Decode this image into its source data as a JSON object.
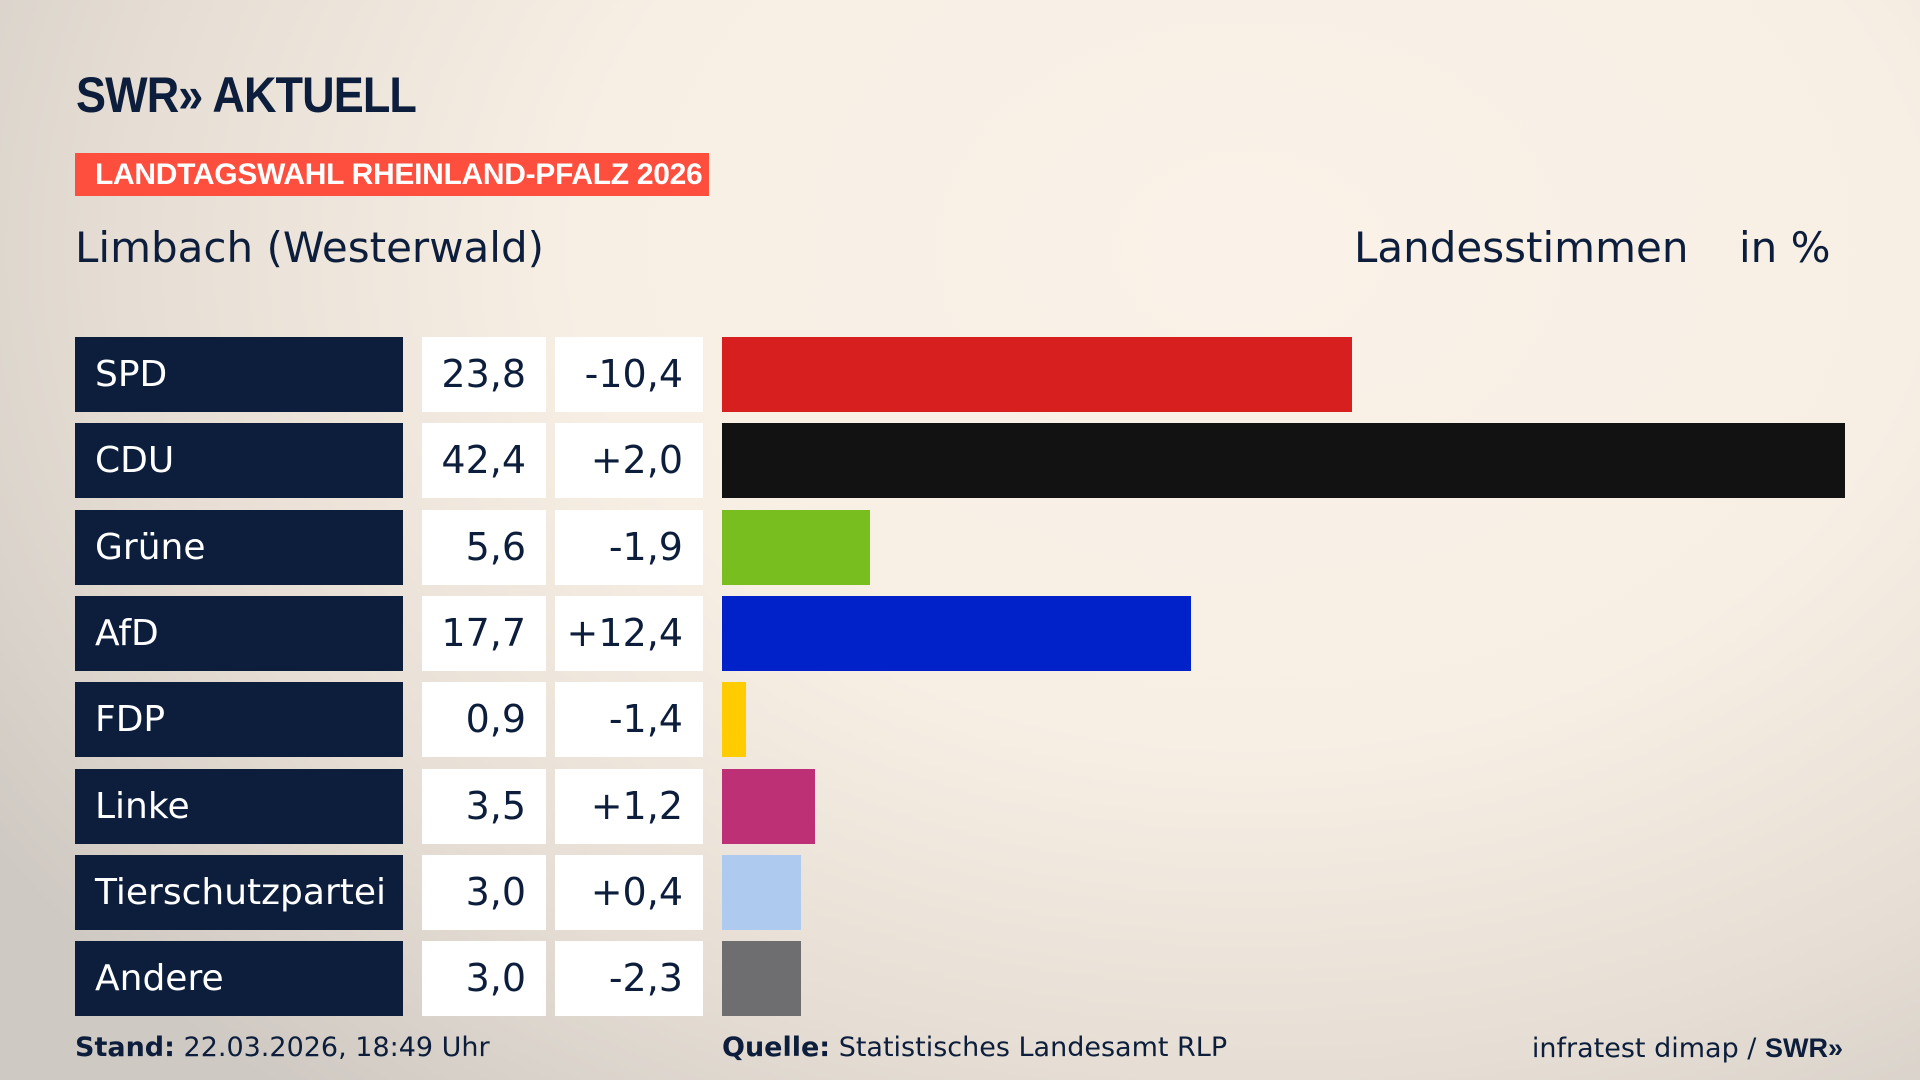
{
  "header": {
    "logo_text": "SWR» AKTUELL",
    "banner": "LANDTAGSWAHL RHEINLAND-PFALZ 2026",
    "location": "Limbach (Westerwald)",
    "vote_type": "Landesstimmen",
    "unit": "in %"
  },
  "chart_data": {
    "type": "bar",
    "orientation": "horizontal",
    "categories": [
      "SPD",
      "CDU",
      "Grüne",
      "AfD",
      "FDP",
      "Linke",
      "Tierschutzpartei",
      "Andere"
    ],
    "values": [
      23.8,
      42.4,
      5.6,
      17.7,
      0.9,
      3.5,
      3.0,
      3.0
    ],
    "value_labels": [
      "23,8",
      "42,4",
      "5,6",
      "17,7",
      "0,9",
      "3,5",
      "3,0",
      "3,0"
    ],
    "changes": [
      -10.4,
      2.0,
      -1.9,
      12.4,
      -1.4,
      1.2,
      0.4,
      -2.3
    ],
    "change_labels": [
      "-10,4",
      "+2,0",
      "-1,9",
      "+12,4",
      "-1,4",
      "+1,2",
      "+0,4",
      "-2,3"
    ],
    "colors": [
      "#d71f1f",
      "#121212",
      "#78be1e",
      "#0022c8",
      "#ffcc00",
      "#be3075",
      "#aecbef",
      "#6e6e70"
    ],
    "xlim": [
      0,
      42.4
    ],
    "grid": false
  },
  "footer": {
    "stand_label": "Stand:",
    "stand_value": "22.03.2026, 18:49 Uhr",
    "source_label": "Quelle:",
    "source_value": "Statistisches Landesamt RLP",
    "credit": "infratest dimap / ",
    "credit_logo": "SWR»"
  }
}
